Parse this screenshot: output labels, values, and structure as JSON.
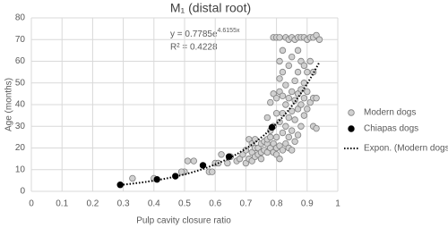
{
  "chart_data": {
    "type": "scatter",
    "title": "M₁ (distal root)",
    "x_label": "Pulp cavity closure ratio",
    "y_label": "Age (months)",
    "xlim": [
      0,
      1
    ],
    "ylim": [
      0,
      80
    ],
    "xticks": [
      0,
      0.1,
      0.2,
      0.3,
      0.4,
      0.5,
      0.6,
      0.7,
      0.8,
      0.9,
      1
    ],
    "yticks": [
      0,
      10,
      20,
      30,
      40,
      50,
      60,
      70,
      80
    ],
    "grid": true,
    "legend": "right",
    "series": [
      {
        "name": "Modern dogs",
        "color": "#d0d0d0",
        "edge": "#808080",
        "x": [
          0.33,
          0.4,
          0.5,
          0.51,
          0.53,
          0.49,
          0.58,
          0.6,
          0.61,
          0.62,
          0.59,
          0.64,
          0.65,
          0.67,
          0.68,
          0.69,
          0.7,
          0.7,
          0.71,
          0.71,
          0.72,
          0.72,
          0.72,
          0.73,
          0.73,
          0.73,
          0.74,
          0.74,
          0.75,
          0.75,
          0.75,
          0.76,
          0.76,
          0.77,
          0.77,
          0.77,
          0.77,
          0.78,
          0.78,
          0.78,
          0.78,
          0.79,
          0.79,
          0.79,
          0.79,
          0.79,
          0.8,
          0.8,
          0.8,
          0.8,
          0.8,
          0.8,
          0.81,
          0.81,
          0.81,
          0.81,
          0.81,
          0.81,
          0.81,
          0.82,
          0.82,
          0.82,
          0.82,
          0.82,
          0.82,
          0.83,
          0.83,
          0.83,
          0.83,
          0.83,
          0.84,
          0.84,
          0.84,
          0.84,
          0.84,
          0.84,
          0.85,
          0.85,
          0.85,
          0.85,
          0.85,
          0.85,
          0.86,
          0.86,
          0.86,
          0.86,
          0.86,
          0.87,
          0.87,
          0.87,
          0.87,
          0.87,
          0.87,
          0.88,
          0.88,
          0.88,
          0.88,
          0.88,
          0.89,
          0.89,
          0.89,
          0.89,
          0.89,
          0.9,
          0.9,
          0.9,
          0.9,
          0.91,
          0.91,
          0.91,
          0.92,
          0.92,
          0.92,
          0.92,
          0.93,
          0.93,
          0.93,
          0.94
        ],
        "values": [
          6,
          6,
          9,
          14,
          14,
          9,
          9,
          13,
          13,
          17,
          9,
          13,
          16,
          14,
          15,
          17,
          19,
          13,
          15,
          24,
          18,
          22,
          14,
          16,
          20,
          24,
          17,
          20,
          22,
          18,
          15,
          19,
          23,
          18,
          22,
          24,
          34,
          20,
          25,
          28,
          41,
          18,
          22,
          30,
          45,
          71,
          17,
          20,
          25,
          36,
          43,
          71,
          15,
          21,
          32,
          46,
          52,
          60,
          71,
          19,
          27,
          36,
          44,
          55,
          65,
          22,
          30,
          40,
          49,
          71,
          20,
          25,
          34,
          43,
          58,
          70,
          19,
          28,
          37,
          46,
          62,
          71,
          23,
          33,
          42,
          51,
          70,
          26,
          38,
          45,
          55,
          65,
          71,
          30,
          40,
          47,
          60,
          71,
          35,
          43,
          50,
          58,
          71,
          38,
          46,
          55,
          70,
          41,
          60,
          71,
          30,
          43,
          55,
          71,
          29,
          43,
          72,
          70
        ]
      },
      {
        "name": "Chiapas dogs",
        "color": "#000000",
        "edge": "#000000",
        "x": [
          0.29,
          0.41,
          0.47,
          0.56,
          0.645,
          0.785
        ],
        "values": [
          3,
          5.5,
          7,
          12,
          16,
          29.5
        ]
      }
    ],
    "trendline": {
      "name": "Expon. (Modern dogs)",
      "a": 0.7785,
      "b": 4.6155,
      "xlim": [
        0.3,
        0.94
      ],
      "equation": "y = 0.7785e",
      "exponent": "4.6155x",
      "r_squared": "R² = 0.4228"
    }
  }
}
